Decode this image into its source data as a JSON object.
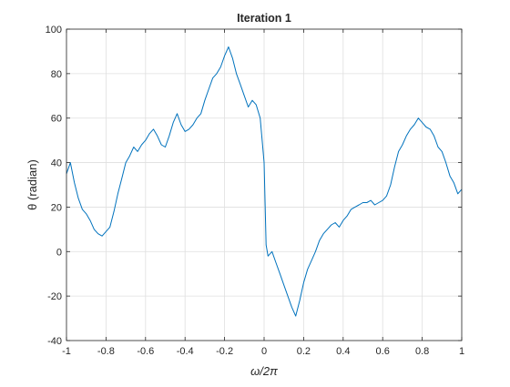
{
  "chart_data": {
    "type": "line",
    "title": "Iteration 1",
    "xlabel": "ω/2π",
    "ylabel": "θ (radian)",
    "xlim": [
      -1,
      1
    ],
    "ylim": [
      -40,
      100
    ],
    "xticks": [
      -1,
      -0.8,
      -0.6,
      -0.4,
      -0.2,
      0,
      0.2,
      0.4,
      0.6,
      0.8,
      1
    ],
    "xtick_labels": [
      "-1",
      "-0.8",
      "-0.6",
      "-0.4",
      "-0.2",
      "0",
      "0.2",
      "0.4",
      "0.6",
      "0.8",
      "1"
    ],
    "yticks": [
      -40,
      -20,
      0,
      20,
      40,
      60,
      80,
      100
    ],
    "ytick_labels": [
      "-40",
      "-20",
      "0",
      "20",
      "40",
      "60",
      "80",
      "100"
    ],
    "grid": true,
    "line_color": "#0072BD",
    "series": [
      {
        "x": [
          -1.0,
          -0.98,
          -0.96,
          -0.94,
          -0.92,
          -0.9,
          -0.88,
          -0.86,
          -0.84,
          -0.82,
          -0.8,
          -0.78,
          -0.76,
          -0.74,
          -0.72,
          -0.7,
          -0.68,
          -0.66,
          -0.64,
          -0.62,
          -0.6,
          -0.58,
          -0.56,
          -0.54,
          -0.52,
          -0.5,
          -0.48,
          -0.46,
          -0.44,
          -0.42,
          -0.4,
          -0.38,
          -0.36,
          -0.34,
          -0.32,
          -0.3,
          -0.28,
          -0.26,
          -0.24,
          -0.22,
          -0.2,
          -0.18,
          -0.16,
          -0.14,
          -0.12,
          -0.1,
          -0.08,
          -0.06,
          -0.04,
          -0.02,
          0.0,
          0.01,
          0.02,
          0.04,
          0.06,
          0.08,
          0.1,
          0.12,
          0.14,
          0.16,
          0.18,
          0.2,
          0.22,
          0.24,
          0.26,
          0.28,
          0.3,
          0.32,
          0.34,
          0.36,
          0.38,
          0.4,
          0.42,
          0.44,
          0.46,
          0.48,
          0.5,
          0.52,
          0.54,
          0.56,
          0.58,
          0.6,
          0.62,
          0.64,
          0.66,
          0.68,
          0.7,
          0.72,
          0.74,
          0.76,
          0.78,
          0.8,
          0.82,
          0.84,
          0.86,
          0.88,
          0.9,
          0.92,
          0.94,
          0.96,
          0.98,
          1.0
        ],
        "y": [
          35,
          40,
          31,
          24,
          19,
          17,
          14,
          10,
          8,
          7,
          9,
          11,
          18,
          26,
          33,
          40,
          43,
          47,
          45,
          48,
          50,
          53,
          55,
          52,
          48,
          47,
          52,
          58,
          62,
          57,
          54,
          55,
          57,
          60,
          62,
          68,
          73,
          78,
          80,
          83,
          88,
          92,
          87,
          80,
          75,
          70,
          65,
          68,
          66,
          60,
          40,
          3,
          -2,
          0,
          -5,
          -10,
          -15,
          -20,
          -25,
          -29,
          -22,
          -14,
          -8,
          -4,
          0,
          5,
          8,
          10,
          12,
          13,
          11,
          14,
          16,
          19,
          20,
          21,
          22,
          22,
          23,
          21,
          22,
          23,
          25,
          30,
          38,
          45,
          48,
          52,
          55,
          57,
          60,
          58,
          56,
          55,
          52,
          47,
          45,
          40,
          34,
          31,
          26,
          28
        ]
      }
    ]
  }
}
